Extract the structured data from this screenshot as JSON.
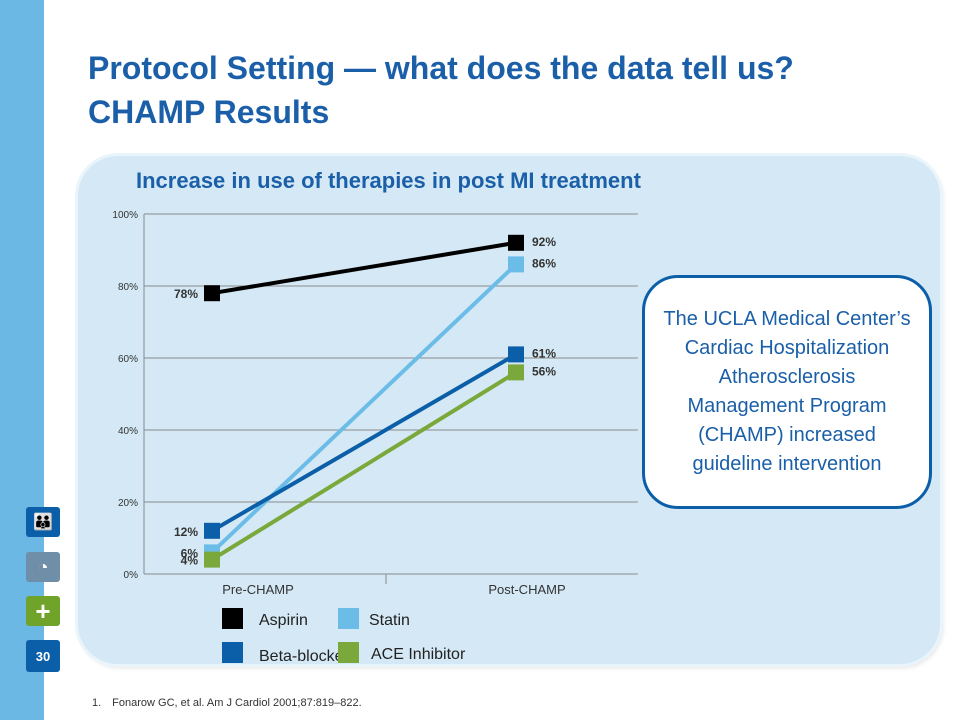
{
  "slide": {
    "title_line1": "Protocol Setting — what does the data tell us?",
    "title_line2": "CHAMP Results",
    "page_number": "30",
    "footnote": "1. Fonarow GC, et al. Am J Cardiol 2001;87:819–822.",
    "callout_text": "The UCLA Medical Center’s Cardiac Hospitalization Atherosclerosis Management Program (CHAMP) increased guideline intervention",
    "side_icons": [
      "people-icon",
      "pie-chart-icon",
      "plus-icon"
    ]
  },
  "chart_data": {
    "type": "line",
    "title": "Increase in use of therapies in post MI treatment",
    "categories": [
      "Pre-CHAMP",
      "Post-CHAMP"
    ],
    "ylim": [
      0,
      100
    ],
    "yticks": [
      "0%",
      "20%",
      "40%",
      "60%",
      "80%",
      "100%"
    ],
    "grid": true,
    "legend_position": "bottom",
    "series": [
      {
        "name": "Aspirin",
        "values": [
          78,
          92
        ],
        "labels": [
          "78%",
          "92%"
        ],
        "color": "#000000"
      },
      {
        "name": "Statin",
        "values": [
          6,
          86
        ],
        "labels": [
          "6%",
          "86%"
        ],
        "color": "#6bbde8"
      },
      {
        "name": "Beta-blocker",
        "values": [
          12,
          61
        ],
        "labels": [
          "12%",
          "61%"
        ],
        "color": "#0b5ea8"
      },
      {
        "name": "ACE Inhibitor",
        "values": [
          4,
          56
        ],
        "labels": [
          "4%",
          "56%"
        ],
        "color": "#7aa83a"
      }
    ]
  }
}
